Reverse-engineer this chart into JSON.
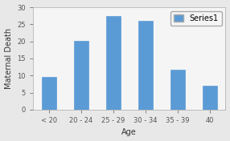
{
  "categories": [
    "< 20",
    "20 - 24",
    "25 - 29",
    "30 - 34",
    "35 - 39",
    "40"
  ],
  "values": [
    9.5,
    20.2,
    27.5,
    26.0,
    11.8,
    7.0
  ],
  "bar_color": "#5B9BD5",
  "bar_edge_color": "#5B9BD5",
  "title": "",
  "xlabel": "Age",
  "ylabel": "Maternal Death",
  "ylim": [
    0,
    30
  ],
  "yticks": [
    0,
    5,
    10,
    15,
    20,
    25,
    30
  ],
  "legend_label": "Series1",
  "background_color": "#e8e8e8",
  "plot_bg_color": "#f5f5f5",
  "xlabel_fontsize": 7,
  "ylabel_fontsize": 7,
  "tick_fontsize": 6,
  "legend_fontsize": 7,
  "bar_width": 0.45
}
